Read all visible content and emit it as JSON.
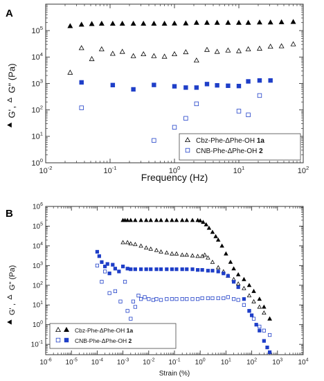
{
  "chart_data": [
    {
      "panel_label": "A",
      "type": "scatter",
      "x_scale": "log",
      "y_scale": "log",
      "xlim": [
        0.01,
        100
      ],
      "ylim": [
        1,
        1000000
      ],
      "xlabel": "Frequency (Hz)",
      "ylabel_g1": "G'",
      "ylabel_mid": ",",
      "ylabel_g2": "G\" (Pa)",
      "x_ticks": [
        {
          "value": 0.01,
          "base": "10",
          "exp": "-2"
        },
        {
          "value": 0.1,
          "base": "10",
          "exp": "-1"
        },
        {
          "value": 1,
          "base": "10",
          "exp": "0"
        },
        {
          "value": 10,
          "base": "10",
          "exp": "1"
        },
        {
          "value": 100,
          "base": "10",
          "exp": "2"
        }
      ],
      "y_ticks": [
        {
          "value": 1,
          "base": "10",
          "exp": "0"
        },
        {
          "value": 10,
          "base": "10",
          "exp": "1"
        },
        {
          "value": 100,
          "base": "10",
          "exp": "2"
        },
        {
          "value": 1000,
          "base": "10",
          "exp": "3"
        },
        {
          "value": 10000,
          "base": "10",
          "exp": "4"
        },
        {
          "value": 100000,
          "base": "10",
          "exp": "5"
        }
      ],
      "legend": [
        {
          "label": "Cbz-Phe-ΔPhe-OH ",
          "bold": "1a",
          "marker": "open-triangle",
          "color": "#000000"
        },
        {
          "label": "CNB-Phe-ΔPhe-OH ",
          "bold": "2",
          "marker": "open-square",
          "color": "#1f3fc8"
        }
      ],
      "series": [
        {
          "marker": "filled-triangle",
          "color": "#000000",
          "x": [
            0.024,
            0.036,
            0.052,
            0.074,
            0.11,
            0.155,
            0.23,
            0.33,
            0.48,
            0.7,
            1.0,
            1.5,
            2.2,
            3.2,
            4.6,
            6.8,
            10,
            14,
            21,
            31,
            46,
            70
          ],
          "y": [
            150000,
            170000,
            180000,
            185000,
            185000,
            185000,
            185000,
            185000,
            185000,
            185000,
            188000,
            190000,
            200000,
            200000,
            200000,
            200000,
            200000,
            200000,
            205000,
            205000,
            210000,
            215000
          ]
        },
        {
          "marker": "open-triangle",
          "color": "#000000",
          "x": [
            0.024,
            0.036,
            0.052,
            0.074,
            0.11,
            0.155,
            0.23,
            0.33,
            0.48,
            0.7,
            1.0,
            1.5,
            2.2,
            3.2,
            4.6,
            6.8,
            10,
            14,
            21,
            31,
            46,
            70
          ],
          "y": [
            2600,
            22000,
            8500,
            20000,
            13500,
            16000,
            11000,
            13000,
            11000,
            10500,
            13000,
            15500,
            7500,
            19000,
            16000,
            18000,
            17000,
            20000,
            21000,
            25000,
            26000,
            31000
          ]
        },
        {
          "marker": "filled-square",
          "color": "#1f3fc8",
          "x": [
            0.036,
            0.11,
            0.23,
            0.48,
            1.0,
            1.5,
            2.2,
            3.2,
            4.6,
            6.8,
            10,
            14,
            21,
            31
          ],
          "y": [
            1100,
            870,
            600,
            880,
            780,
            700,
            700,
            950,
            850,
            820,
            800,
            1200,
            1300,
            1300
          ]
        },
        {
          "marker": "open-square",
          "color": "#1f3fc8",
          "x": [
            0.036,
            0.48,
            1.0,
            1.5,
            2.2,
            10,
            14,
            21
          ],
          "y": [
            120,
            7,
            22,
            48,
            170,
            90,
            65,
            350
          ]
        }
      ]
    },
    {
      "panel_label": "B",
      "type": "scatter",
      "x_scale": "log",
      "y_scale": "log",
      "xlim": [
        1e-06,
        10000
      ],
      "ylim": [
        0.03,
        1000000
      ],
      "xlabel": "Strain (%)",
      "ylabel_g1": "G'",
      "ylabel_mid": ",",
      "ylabel_g2": "G\" (Pa)",
      "x_ticks": [
        {
          "value": 1e-06,
          "base": "10",
          "exp": "-6"
        },
        {
          "value": 1e-05,
          "base": "10",
          "exp": "-5"
        },
        {
          "value": 0.0001,
          "base": "10",
          "exp": "-4"
        },
        {
          "value": 0.001,
          "base": "10",
          "exp": "-3"
        },
        {
          "value": 0.01,
          "base": "10",
          "exp": "-2"
        },
        {
          "value": 0.1,
          "base": "10",
          "exp": "-1"
        },
        {
          "value": 1,
          "base": "10",
          "exp": "0"
        },
        {
          "value": 10,
          "base": "10",
          "exp": "1"
        },
        {
          "value": 100,
          "base": "10",
          "exp": "2"
        },
        {
          "value": 1000,
          "base": "10",
          "exp": "3"
        },
        {
          "value": 10000,
          "base": "10",
          "exp": "4"
        }
      ],
      "y_ticks": [
        {
          "value": 0.1,
          "base": "10",
          "exp": "-1"
        },
        {
          "value": 1,
          "base": "10",
          "exp": "0"
        },
        {
          "value": 10,
          "base": "10",
          "exp": "1"
        },
        {
          "value": 100,
          "base": "10",
          "exp": "2"
        },
        {
          "value": 1000,
          "base": "10",
          "exp": "3"
        },
        {
          "value": 10000,
          "base": "10",
          "exp": "4"
        },
        {
          "value": 100000,
          "base": "10",
          "exp": "5"
        },
        {
          "value": 1000000,
          "base": "10",
          "exp": "6"
        }
      ],
      "legend": [
        {
          "label": "Cbz-Phe-ΔPhe-OH ",
          "bold": "1a",
          "marker": "open-triangle",
          "color": "#000000",
          "marker2": "filled-triangle"
        },
        {
          "label": "CNB-Phe-ΔPhe-OH ",
          "bold": "2",
          "marker": "open-square",
          "color": "#1f3fc8",
          "marker2": "filled-square"
        }
      ],
      "series": [
        {
          "marker": "filled-triangle",
          "color": "#000000",
          "x": [
            0.001,
            0.0012,
            0.0015,
            0.002,
            0.003,
            0.005,
            0.008,
            0.012,
            0.02,
            0.03,
            0.05,
            0.08,
            0.12,
            0.2,
            0.3,
            0.5,
            0.8,
            1.0,
            1.3,
            1.7,
            2.2,
            3,
            4,
            5,
            7,
            10,
            15,
            20,
            30,
            50,
            80,
            120,
            200,
            300,
            500
          ],
          "y": [
            200000,
            200000,
            200000,
            200000,
            200000,
            200000,
            200000,
            200000,
            200000,
            200000,
            200000,
            200000,
            200000,
            200000,
            200000,
            200000,
            200000,
            190000,
            160000,
            120000,
            80000,
            50000,
            30000,
            20000,
            10000,
            4000,
            1500,
            700,
            350,
            200,
            100,
            50,
            20,
            8,
            2
          ]
        },
        {
          "marker": "open-triangle",
          "color": "#000000",
          "x": [
            0.001,
            0.0015,
            0.002,
            0.003,
            0.005,
            0.008,
            0.012,
            0.02,
            0.03,
            0.05,
            0.08,
            0.12,
            0.2,
            0.3,
            0.5,
            0.8,
            1.2,
            1.5,
            2,
            3,
            5,
            8,
            12,
            20,
            30,
            50,
            80,
            120,
            200,
            300,
            500
          ],
          "y": [
            15000,
            15000,
            13000,
            12000,
            10000,
            8000,
            7000,
            6000,
            5000,
            4500,
            4000,
            4000,
            3500,
            3500,
            3200,
            3000,
            3000,
            3500,
            2500,
            1500,
            800,
            500,
            300,
            200,
            120,
            70,
            30,
            15,
            8,
            4,
            2
          ]
        },
        {
          "marker": "filled-square",
          "color": "#1f3fc8",
          "x": [
            0.0001,
            0.00012,
            0.00015,
            0.0002,
            0.00025,
            0.0003,
            0.0004,
            0.0005,
            0.0007,
            0.001,
            0.0015,
            0.002,
            0.003,
            0.005,
            0.008,
            0.012,
            0.02,
            0.03,
            0.05,
            0.08,
            0.12,
            0.2,
            0.3,
            0.5,
            0.8,
            1.2,
            2,
            3,
            5,
            8,
            12,
            20,
            30,
            50,
            80,
            100,
            150,
            200,
            300,
            400,
            500
          ],
          "y": [
            5000,
            3000,
            1500,
            900,
            1200,
            400,
            1100,
            700,
            500,
            900,
            700,
            650,
            650,
            650,
            650,
            650,
            650,
            650,
            650,
            650,
            650,
            650,
            650,
            650,
            600,
            600,
            550,
            550,
            500,
            400,
            300,
            150,
            80,
            20,
            5,
            3,
            1,
            0.5,
            0.15,
            0.07,
            0.04
          ]
        },
        {
          "marker": "open-square",
          "color": "#1f3fc8",
          "x": [
            0.0001,
            0.00015,
            0.0002,
            0.0003,
            0.0005,
            0.0008,
            0.0012,
            0.0015,
            0.002,
            0.0025,
            0.003,
            0.004,
            0.005,
            0.007,
            0.01,
            0.015,
            0.02,
            0.03,
            0.05,
            0.08,
            0.12,
            0.2,
            0.3,
            0.5,
            0.8,
            1.2,
            2,
            3,
            5,
            8,
            12,
            20,
            30,
            50,
            80,
            120,
            200,
            300,
            500
          ],
          "y": [
            1000,
            150,
            500,
            40,
            50,
            15,
            150,
            5,
            2,
            15,
            8,
            30,
            20,
            25,
            20,
            18,
            20,
            18,
            20,
            20,
            20,
            20,
            20,
            20,
            20,
            22,
            22,
            22,
            22,
            22,
            25,
            20,
            18,
            10,
            5,
            2,
            0.8,
            0.5,
            0.3
          ]
        }
      ]
    }
  ]
}
